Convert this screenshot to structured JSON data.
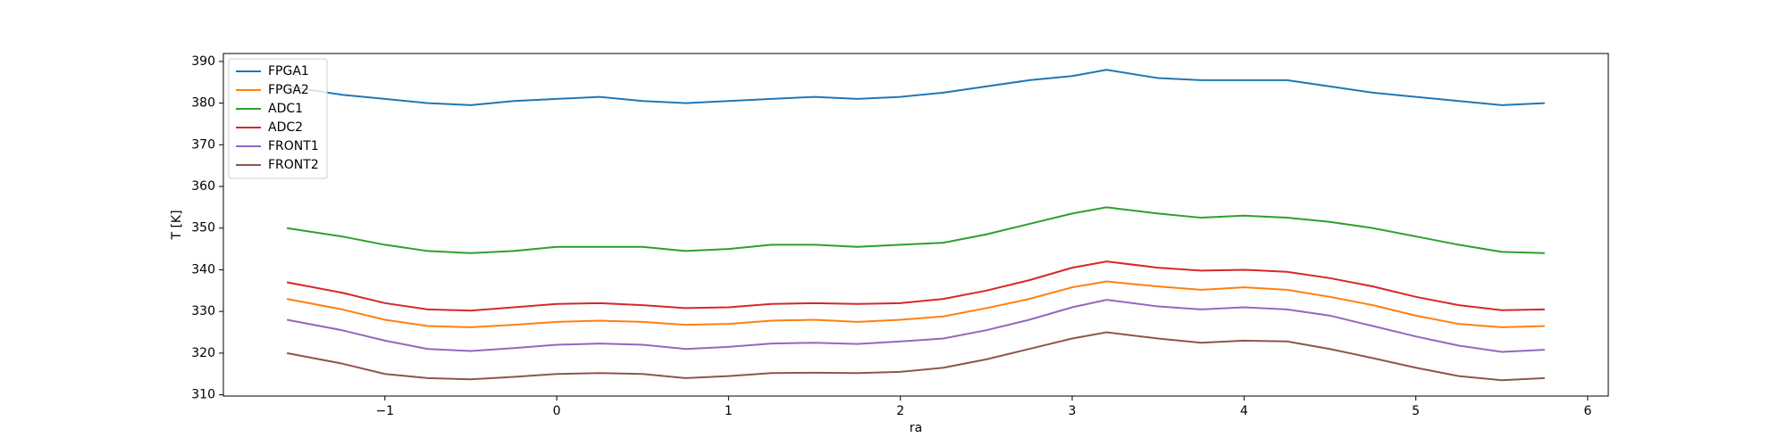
{
  "chart_data": {
    "type": "line",
    "x_label": "ra",
    "y_label": "T [K]",
    "x": [
      -1.57,
      -1.25,
      -1.0,
      -0.75,
      -0.5,
      -0.25,
      0,
      0.25,
      0.5,
      0.75,
      1.0,
      1.25,
      1.5,
      1.75,
      2.0,
      2.25,
      2.5,
      2.75,
      3.0,
      3.2,
      3.5,
      3.75,
      4.0,
      4.25,
      4.5,
      4.75,
      5.0,
      5.25,
      5.5,
      5.75
    ],
    "series": [
      {
        "name": "FPGA1",
        "color": "#1f77b4",
        "values": [
          384,
          382,
          381,
          380,
          379.5,
          380.5,
          381,
          381.5,
          380.5,
          380,
          380.5,
          381,
          381.5,
          381,
          381.5,
          382.5,
          384,
          385.5,
          386.5,
          388,
          386,
          385.5,
          385.5,
          385.5,
          384,
          382.5,
          381.5,
          380.5,
          379.5,
          380
        ]
      },
      {
        "name": "FPGA2",
        "color": "#ff7f0e",
        "values": [
          333,
          330.5,
          328,
          326.5,
          326.2,
          326.8,
          327.5,
          327.8,
          327.5,
          326.8,
          327,
          327.8,
          328,
          327.5,
          328,
          328.8,
          330.8,
          333,
          335.8,
          337.2,
          336,
          335.2,
          335.8,
          335.2,
          333.5,
          331.5,
          329,
          327,
          326.2,
          326.5
        ]
      },
      {
        "name": "ADC1",
        "color": "#2ca02c",
        "values": [
          350,
          348,
          346,
          344.5,
          344,
          344.5,
          345.5,
          345.5,
          345.5,
          344.5,
          345,
          346,
          346,
          345.5,
          346,
          346.5,
          348.5,
          351,
          353.5,
          355,
          353.5,
          352.5,
          353,
          352.5,
          351.5,
          350,
          348,
          346,
          344.3,
          344
        ]
      },
      {
        "name": "ADC2",
        "color": "#d62728",
        "values": [
          337,
          334.5,
          332,
          330.5,
          330.2,
          331,
          331.8,
          332,
          331.5,
          330.8,
          331,
          331.8,
          332,
          331.8,
          332,
          333,
          335,
          337.5,
          340.5,
          342,
          340.5,
          339.8,
          340,
          339.5,
          338,
          336,
          333.5,
          331.5,
          330.3,
          330.5
        ]
      },
      {
        "name": "FRONT1",
        "color": "#9467bd",
        "values": [
          328,
          325.5,
          323,
          321,
          320.5,
          321.2,
          322,
          322.3,
          322,
          321,
          321.5,
          322.3,
          322.5,
          322.2,
          322.8,
          323.5,
          325.5,
          328,
          331,
          332.8,
          331.2,
          330.5,
          331,
          330.5,
          329,
          326.5,
          324,
          321.8,
          320.3,
          320.8
        ]
      },
      {
        "name": "FRONT2",
        "color": "#8c564b",
        "values": [
          320,
          317.5,
          315,
          314,
          313.7,
          314.3,
          315,
          315.2,
          315,
          314,
          314.5,
          315.2,
          315.3,
          315.2,
          315.5,
          316.5,
          318.5,
          321,
          323.5,
          325,
          323.5,
          322.5,
          323,
          322.8,
          321,
          318.8,
          316.5,
          314.5,
          313.5,
          314
        ]
      }
    ],
    "xlim": [
      -1.94,
      6.12
    ],
    "ylim": [
      309.7,
      391.9
    ],
    "xticks": [
      {
        "value": -1,
        "label": "−1"
      },
      0,
      1,
      2,
      3,
      4,
      5,
      6
    ],
    "yticks": [
      310,
      320,
      330,
      340,
      350,
      360,
      370,
      380,
      390
    ],
    "legend": "upper left",
    "grid": false
  }
}
